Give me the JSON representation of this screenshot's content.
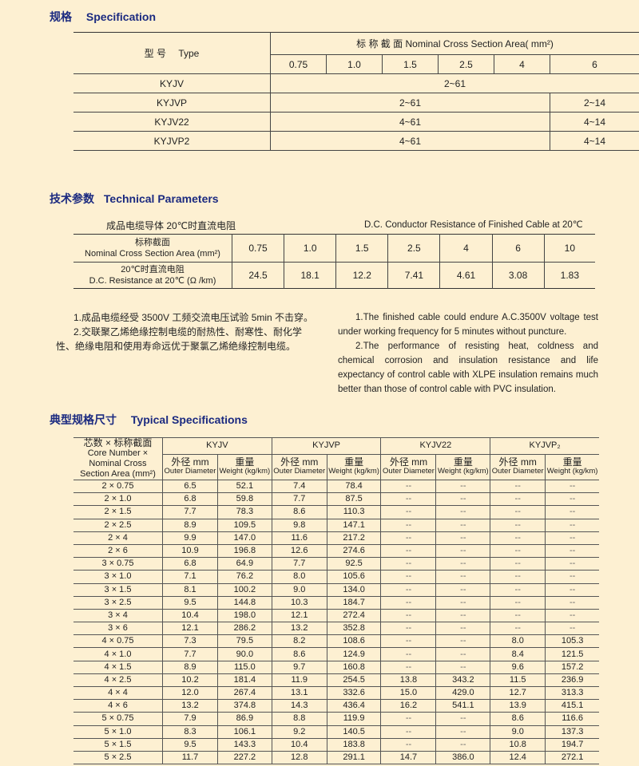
{
  "spec": {
    "heading_zh": "规格",
    "heading_en": "Specification",
    "type_label": "型 号　 Type",
    "area_label": "标 称 截 面  Nominal Cross Section Area( mm²)",
    "areas": [
      "0.75",
      "1.0",
      "1.5",
      "2.5",
      "4",
      "6"
    ],
    "rows": [
      {
        "type": "KYJV",
        "range": "2~61",
        "range6": ""
      },
      {
        "type": "KYJVP",
        "range": "2~61",
        "range6": "2~14"
      },
      {
        "type": "KYJV22",
        "range": "4~61",
        "range6": "4~14"
      },
      {
        "type": "KYJVP2",
        "range": "4~61",
        "range6": "4~14"
      }
    ]
  },
  "tech": {
    "heading_zh": "技术参数",
    "heading_en": "Technical Parameters",
    "caption_zh": "成品电缆导体 20℃时直流电阻",
    "caption_en": "D.C. Conductor Resistance of Finished Cable at 20℃",
    "area_label_zh": "标称截面",
    "area_label_en": "Nominal Cross Section Area (mm²)",
    "res_label_zh": "20℃时直流电阻",
    "res_label_en": "D.C. Resistance at 20℃ (Ω /km)",
    "areas": [
      "0.75",
      "1.0",
      "1.5",
      "2.5",
      "4",
      "6",
      "10"
    ],
    "resistance": [
      "24.5",
      "18.1",
      "12.2",
      "7.41",
      "4.61",
      "3.08",
      "1.83"
    ]
  },
  "notes": {
    "zh": [
      "1.成品电缆经受 3500V 工频交流电压试验 5min 不击穿。",
      "2.交联聚乙烯绝缘控制电缆的耐热性、耐寒性、耐化学性、绝缘电阻和使用寿命远优于聚氯乙烯绝缘控制电缆。"
    ],
    "en": [
      "1.The finished cable could endure A.C.3500V voltage test under working frequency for 5 minutes without puncture.",
      "2.The performance of resisting heat, coldness and chemical corrosion and insulation resistance and life expectancy of control cable with XLPE insulation remains much better than those of control cable with PVC insulation."
    ]
  },
  "typical": {
    "heading_zh": "典型规格尺寸",
    "heading_en": "Typical Specifications",
    "corner_zh": "芯数 × 标称截面",
    "corner_en": "Core Number × Nominal Cross Section Area (mm²)",
    "models": [
      "KYJV",
      "KYJVP",
      "KYJV22",
      "KYJVP₂"
    ],
    "od_zh": "外径 mm",
    "od_en": "Outer Diameter",
    "wt_zh": "重量",
    "wt_en": "Weight (kg/km)",
    "rows": [
      [
        "2 × 0.75",
        "6.5",
        "52.1",
        "7.4",
        "78.4",
        "--",
        "--",
        "--",
        "--"
      ],
      [
        "2 × 1.0",
        "6.8",
        "59.8",
        "7.7",
        "87.5",
        "--",
        "--",
        "--",
        "--"
      ],
      [
        "2 × 1.5",
        "7.7",
        "78.3",
        "8.6",
        "110.3",
        "--",
        "--",
        "--",
        "--"
      ],
      [
        "2 × 2.5",
        "8.9",
        "109.5",
        "9.8",
        "147.1",
        "--",
        "--",
        "--",
        "--"
      ],
      [
        "2 × 4",
        "9.9",
        "147.0",
        "11.6",
        "217.2",
        "--",
        "--",
        "--",
        "--"
      ],
      [
        "2 × 6",
        "10.9",
        "196.8",
        "12.6",
        "274.6",
        "--",
        "--",
        "--",
        "--"
      ],
      [
        "3 × 0.75",
        "6.8",
        "64.9",
        "7.7",
        "92.5",
        "--",
        "--",
        "--",
        "--"
      ],
      [
        "3 × 1.0",
        "7.1",
        "76.2",
        "8.0",
        "105.6",
        "--",
        "--",
        "--",
        "--"
      ],
      [
        "3 × 1.5",
        "8.1",
        "100.2",
        "9.0",
        "134.0",
        "--",
        "--",
        "--",
        "--"
      ],
      [
        "3 × 2.5",
        "9.5",
        "144.8",
        "10.3",
        "184.7",
        "--",
        "--",
        "--",
        "--"
      ],
      [
        "3 × 4",
        "10.4",
        "198.0",
        "12.1",
        "272.4",
        "--",
        "--",
        "--",
        "--"
      ],
      [
        "3 × 6",
        "12.1",
        "286.2",
        "13.2",
        "352.8",
        "--",
        "--",
        "--",
        "--"
      ],
      [
        "4 × 0.75",
        "7.3",
        "79.5",
        "8.2",
        "108.6",
        "--",
        "--",
        "8.0",
        "105.3"
      ],
      [
        "4 × 1.0",
        "7.7",
        "90.0",
        "8.6",
        "124.9",
        "--",
        "--",
        "8.4",
        "121.5"
      ],
      [
        "4 × 1.5",
        "8.9",
        "115.0",
        "9.7",
        "160.8",
        "--",
        "--",
        "9.6",
        "157.2"
      ],
      [
        "4 × 2.5",
        "10.2",
        "181.4",
        "11.9",
        "254.5",
        "13.8",
        "343.2",
        "11.5",
        "236.9"
      ],
      [
        "4 × 4",
        "12.0",
        "267.4",
        "13.1",
        "332.6",
        "15.0",
        "429.0",
        "12.7",
        "313.3"
      ],
      [
        "4 × 6",
        "13.2",
        "374.8",
        "14.3",
        "436.4",
        "16.2",
        "541.1",
        "13.9",
        "415.1"
      ],
      [
        "5 × 0.75",
        "7.9",
        "86.9",
        "8.8",
        "119.9",
        "--",
        "--",
        "8.6",
        "116.6"
      ],
      [
        "5 × 1.0",
        "8.3",
        "106.1",
        "9.2",
        "140.5",
        "--",
        "--",
        "9.0",
        "137.3"
      ],
      [
        "5 × 1.5",
        "9.5",
        "143.3",
        "10.4",
        "183.8",
        "--",
        "--",
        "10.8",
        "194.7"
      ],
      [
        "5 × 2.5",
        "11.7",
        "227.2",
        "12.8",
        "291.1",
        "14.7",
        "386.0",
        "12.4",
        "272.1"
      ]
    ]
  },
  "colors": {
    "heading": "#1b2a80",
    "background": "#fdf0d2",
    "rule": "#333333"
  }
}
